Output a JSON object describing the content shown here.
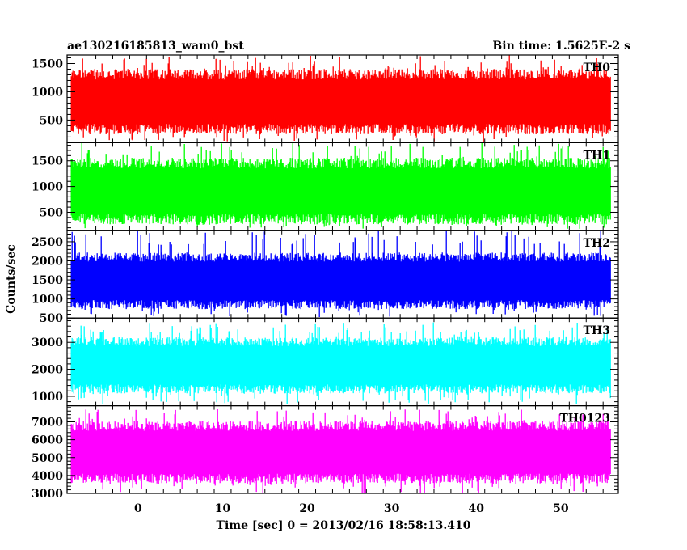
{
  "header": {
    "title": "ae130216185813_wam0_bst",
    "bin_time": "Bin time: 1.5625E-2 s"
  },
  "chart_data": {
    "type": "line",
    "xlabel": "Time [sec] 0 = 2013/02/16 18:58:13.410",
    "ylabel": "Counts/sec",
    "xlim": [
      -8.4,
      56.8
    ],
    "x_ticks": [
      0,
      10,
      20,
      30,
      40,
      50
    ],
    "x_data_range": [
      -7.9,
      55.9
    ],
    "series": [
      {
        "name": "TH0",
        "color": "#ff0000",
        "ylim": [
          100,
          1650
        ],
        "y_ticks": [
          500,
          1000,
          1500
        ],
        "typical_low": 300,
        "typical_high": 1350,
        "min": 120,
        "max": 1650
      },
      {
        "name": "TH1",
        "color": "#00ff00",
        "ylim": [
          150,
          1850
        ],
        "y_ticks": [
          500,
          1000,
          1500
        ],
        "typical_low": 320,
        "typical_high": 1500,
        "min": 180,
        "max": 1850
      },
      {
        "name": "TH2",
        "color": "#0000ff",
        "ylim": [
          500,
          2800
        ],
        "y_ticks": [
          500,
          1000,
          1500,
          2000,
          2500
        ],
        "typical_low": 800,
        "typical_high": 2150,
        "min": 520,
        "max": 2800
      },
      {
        "name": "TH3",
        "color": "#00ffff",
        "ylim": [
          650,
          3900
        ],
        "y_ticks": [
          1000,
          2000,
          3000
        ],
        "typical_low": 1200,
        "typical_high": 3100,
        "min": 700,
        "max": 3750
      },
      {
        "name": "TH0123",
        "color": "#ff00ff",
        "ylim": [
          3000,
          7900
        ],
        "y_ticks": [
          3000,
          4000,
          5000,
          6000,
          7000
        ],
        "typical_low": 3700,
        "typical_high": 6900,
        "min": 3000,
        "max": 7700
      }
    ]
  }
}
